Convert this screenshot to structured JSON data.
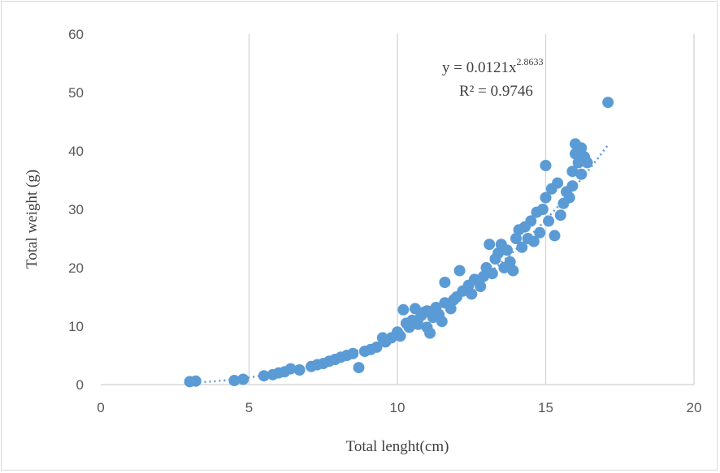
{
  "chart_data": {
    "type": "scatter",
    "xlabel": "Total lenght(cm)",
    "ylabel": "Total weight  (g)",
    "xlim": [
      0,
      20
    ],
    "ylim": [
      0,
      60
    ],
    "x_ticks": [
      "0",
      "5",
      "10",
      "15",
      "20"
    ],
    "y_ticks": [
      "0",
      "10",
      "20",
      "30",
      "40",
      "50",
      "60"
    ],
    "grid": "vertical",
    "trendline": {
      "type": "power",
      "a": 0.0121,
      "b": 2.8633,
      "style": "dotted",
      "x_range": [
        3,
        17.1
      ]
    },
    "equation": {
      "prefix": "y = 0.0121x",
      "exponent": "2.8633",
      "r2": "R² = 0.9746"
    },
    "marker_color": "#5b9bd5",
    "series": [
      {
        "points": [
          [
            3.0,
            0.5
          ],
          [
            3.2,
            0.6
          ],
          [
            4.5,
            0.7
          ],
          [
            4.8,
            0.9
          ],
          [
            5.5,
            1.5
          ],
          [
            5.8,
            1.7
          ],
          [
            6.0,
            2.0
          ],
          [
            6.2,
            2.2
          ],
          [
            6.4,
            2.7
          ],
          [
            6.7,
            2.5
          ],
          [
            7.1,
            3.1
          ],
          [
            7.3,
            3.4
          ],
          [
            7.5,
            3.6
          ],
          [
            7.7,
            4.0
          ],
          [
            7.9,
            4.3
          ],
          [
            8.1,
            4.7
          ],
          [
            8.3,
            5.0
          ],
          [
            8.5,
            5.3
          ],
          [
            8.7,
            2.9
          ],
          [
            8.9,
            5.7
          ],
          [
            9.1,
            6.0
          ],
          [
            9.3,
            6.4
          ],
          [
            9.5,
            8.0
          ],
          [
            9.6,
            7.3
          ],
          [
            9.8,
            8.0
          ],
          [
            10.0,
            9.0
          ],
          [
            10.1,
            8.3
          ],
          [
            10.2,
            12.8
          ],
          [
            10.3,
            10.5
          ],
          [
            10.4,
            9.8
          ],
          [
            10.5,
            11.0
          ],
          [
            10.6,
            13.0
          ],
          [
            10.7,
            10.3
          ],
          [
            10.8,
            11.8
          ],
          [
            10.9,
            12.4
          ],
          [
            11.0,
            9.8
          ],
          [
            11.0,
            12.6
          ],
          [
            11.1,
            8.8
          ],
          [
            11.2,
            11.5
          ],
          [
            11.3,
            13.2
          ],
          [
            11.4,
            12.0
          ],
          [
            11.5,
            10.8
          ],
          [
            11.6,
            17.5
          ],
          [
            11.6,
            14.0
          ],
          [
            11.8,
            13.0
          ],
          [
            11.9,
            14.5
          ],
          [
            12.0,
            15.0
          ],
          [
            12.1,
            19.5
          ],
          [
            12.2,
            16.0
          ],
          [
            12.4,
            17.0
          ],
          [
            12.5,
            15.5
          ],
          [
            12.6,
            18.0
          ],
          [
            12.8,
            16.8
          ],
          [
            12.9,
            18.5
          ],
          [
            13.0,
            20.0
          ],
          [
            13.1,
            24.0
          ],
          [
            13.2,
            19.0
          ],
          [
            13.3,
            21.5
          ],
          [
            13.4,
            22.5
          ],
          [
            13.5,
            24.0
          ],
          [
            13.6,
            20.0
          ],
          [
            13.7,
            23.0
          ],
          [
            13.8,
            21.0
          ],
          [
            13.9,
            19.5
          ],
          [
            14.0,
            25.0
          ],
          [
            14.1,
            26.5
          ],
          [
            14.2,
            23.5
          ],
          [
            14.3,
            27.0
          ],
          [
            14.4,
            25.0
          ],
          [
            14.5,
            28.0
          ],
          [
            14.6,
            24.5
          ],
          [
            14.7,
            29.5
          ],
          [
            14.8,
            26.0
          ],
          [
            14.9,
            30.0
          ],
          [
            15.0,
            37.5
          ],
          [
            15.0,
            32.0
          ],
          [
            15.1,
            28.0
          ],
          [
            15.2,
            33.5
          ],
          [
            15.3,
            25.5
          ],
          [
            15.4,
            34.5
          ],
          [
            15.5,
            29.0
          ],
          [
            15.6,
            31.0
          ],
          [
            15.7,
            33.0
          ],
          [
            15.8,
            32.0
          ],
          [
            15.9,
            34.0
          ],
          [
            15.9,
            36.5
          ],
          [
            16.0,
            41.2
          ],
          [
            16.0,
            39.5
          ],
          [
            16.1,
            38.0
          ],
          [
            16.2,
            40.5
          ],
          [
            16.3,
            39.0
          ],
          [
            16.4,
            38.0
          ],
          [
            16.2,
            36.0
          ],
          [
            17.1,
            48.3
          ]
        ]
      }
    ]
  }
}
